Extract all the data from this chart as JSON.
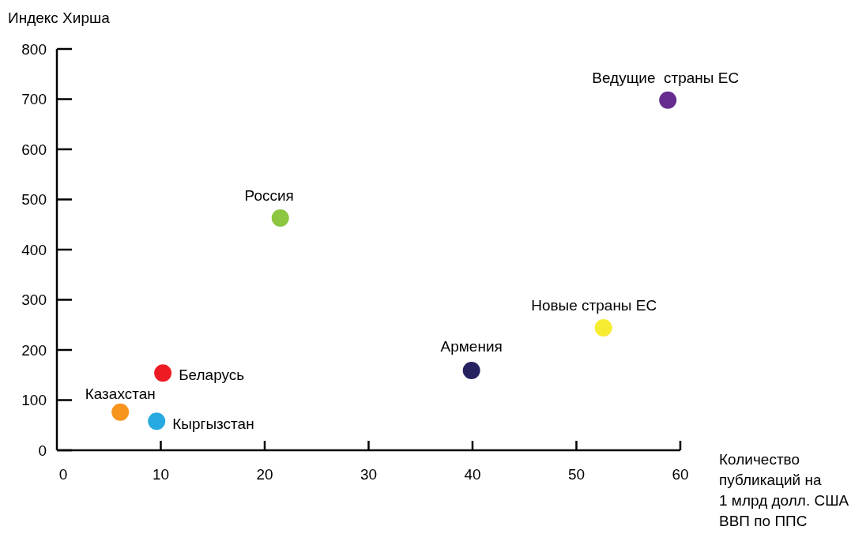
{
  "chart_data": {
    "type": "scatter",
    "ylabel": "Индекс Хирша",
    "xlabel": "Количество\nпубликаций на\n1 млрд долл. США\nВВП по ППС",
    "xlim": [
      0,
      60
    ],
    "xticks": [
      0,
      10,
      20,
      30,
      40,
      50,
      60
    ],
    "ylim": [
      0,
      800
    ],
    "yticks": [
      0,
      100,
      200,
      300,
      400,
      500,
      600,
      700,
      800
    ],
    "grid": false,
    "legend": false,
    "marker": "circle",
    "series": [
      {
        "name": "Ведущие  страны ЕС",
        "color": "#662d91",
        "x": [
          58.8
        ],
        "values": [
          698
        ]
      },
      {
        "name": "Россия",
        "color": "#8dc63f",
        "x": [
          21.5
        ],
        "values": [
          463
        ]
      },
      {
        "name": "Новые страны ЕС",
        "color": "#f7ec31",
        "x": [
          52.6
        ],
        "values": [
          244
        ]
      },
      {
        "name": "Армения",
        "color": "#262262",
        "x": [
          39.9
        ],
        "values": [
          159
        ]
      },
      {
        "name": "Беларусь",
        "color": "#ed1c24",
        "x": [
          10.2
        ],
        "values": [
          154
        ]
      },
      {
        "name": "Казахстан",
        "color": "#f7941d",
        "x": [
          6.1
        ],
        "values": [
          76
        ]
      },
      {
        "name": "Кыргызстан",
        "color": "#27aae1",
        "x": [
          9.6
        ],
        "values": [
          58
        ]
      }
    ]
  }
}
